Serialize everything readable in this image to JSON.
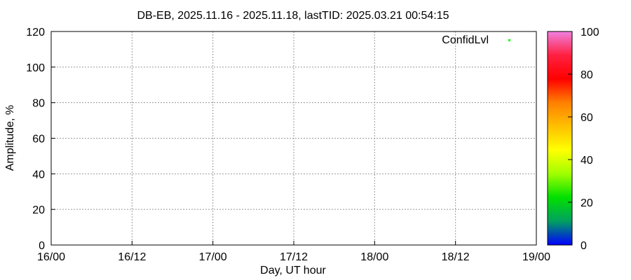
{
  "chart_data": {
    "type": "scatter",
    "title": "DB-EB, 2025.11.16 - 2025.11.18, lastTID: 2025.03.21 00:54:15",
    "xlabel": "Day, UT hour",
    "ylabel": "Amplitude, %",
    "xticks": [
      "16/00",
      "16/12",
      "17/00",
      "17/12",
      "18/00",
      "18/12",
      "19/00"
    ],
    "ylim": [
      0,
      120
    ],
    "yticks": [
      0,
      20,
      40,
      60,
      80,
      100,
      120
    ],
    "grid": true,
    "legend": {
      "label": "ConfidLvl",
      "placement": "top-right",
      "marker_color": "#00ff00"
    },
    "colorbar": {
      "range": [
        0,
        100
      ],
      "ticks": [
        0,
        20,
        40,
        60,
        80,
        100
      ],
      "colors": [
        "#0000ff",
        "#00a060",
        "#00e000",
        "#a0ff00",
        "#ffff00",
        "#ffc000",
        "#ff8000",
        "#ff0000",
        "#ff2040",
        "#f080e0"
      ]
    },
    "series": []
  }
}
